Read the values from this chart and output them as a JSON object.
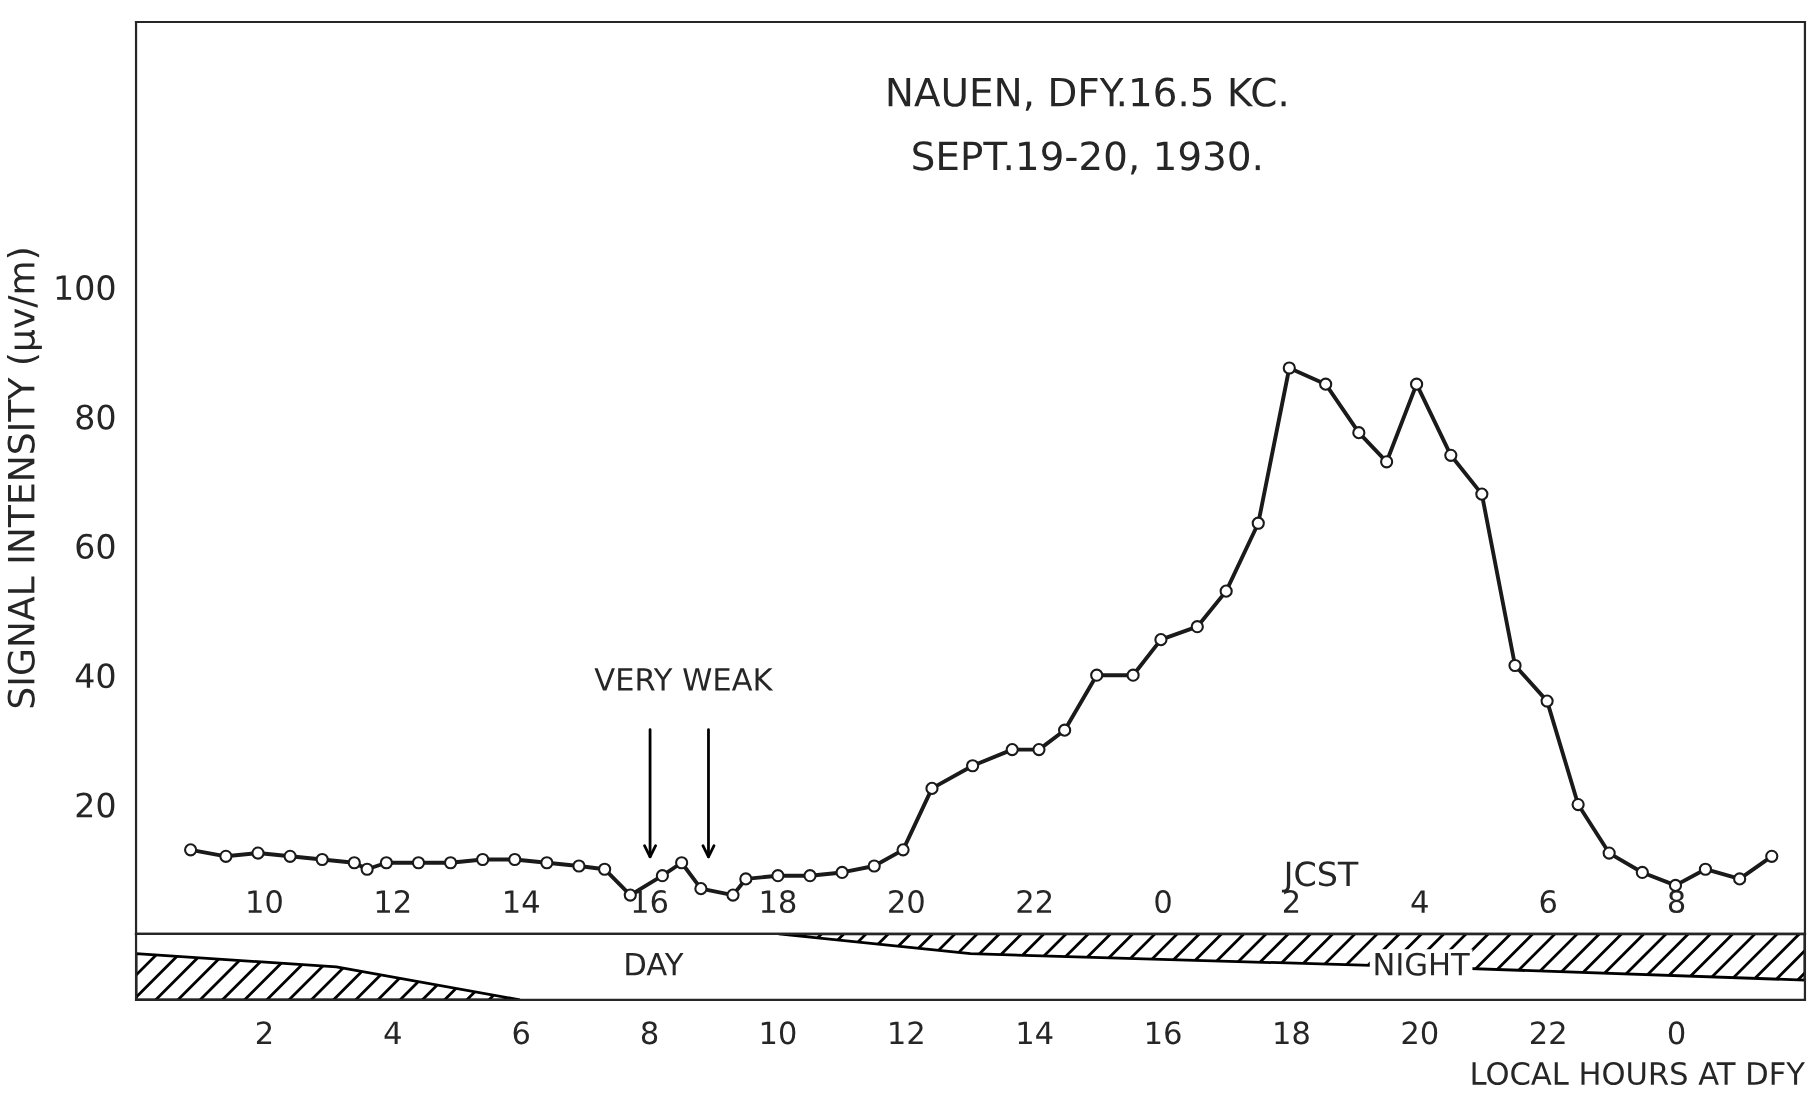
{
  "chart_data": {
    "type": "line",
    "title": "NAUEN, DFY.16.5 KC.",
    "subtitle": "SEPT.19-20, 1930.",
    "ylabel": "SIGNAL INTENSITY (μv/m)",
    "xlabel": "LOCAL HOURS AT DFY",
    "x2label": "JCST",
    "annotations": [
      "VERY WEAK",
      "DAY",
      "NIGHT"
    ],
    "series": [
      {
        "color": "#1a1a1a",
        "x": [
          "1930-09-19T00:51",
          "1930-09-19T01:24",
          "1930-09-19T01:54",
          "1930-09-19T02:24",
          "1930-09-19T02:54",
          "1930-09-19T03:24",
          "1930-09-19T03:36",
          "1930-09-19T03:54",
          "1930-09-19T04:24",
          "1930-09-19T04:54",
          "1930-09-19T05:24",
          "1930-09-19T05:54",
          "1930-09-19T06:24",
          "1930-09-19T06:54",
          "1930-09-19T07:18",
          "1930-09-19T07:42",
          "1930-09-19T08:12",
          "1930-09-19T08:30",
          "1930-09-19T08:48",
          "1930-09-19T09:18",
          "1930-09-19T09:30",
          "1930-09-19T10:00",
          "1930-09-19T10:30",
          "1930-09-19T11:00",
          "1930-09-19T11:30",
          "1930-09-19T11:57",
          "1930-09-19T12:24",
          "1930-09-19T13:02",
          "1930-09-19T13:39",
          "1930-09-19T14:04",
          "1930-09-19T14:28",
          "1930-09-19T14:58",
          "1930-09-19T15:32",
          "1930-09-19T15:58",
          "1930-09-19T16:32",
          "1930-09-19T16:59",
          "1930-09-19T17:29",
          "1930-09-19T17:58",
          "1930-09-19T18:32",
          "1930-09-19T19:03",
          "1930-09-19T19:29",
          "1930-09-19T19:57",
          "1930-09-19T20:29",
          "1930-09-19T20:58",
          "1930-09-19T21:29",
          "1930-09-19T21:59",
          "1930-09-19T22:28",
          "1930-09-19T22:57",
          "1930-09-19T23:28",
          "1930-09-19T23:59",
          "1930-09-20T00:27",
          "1930-09-20T00:59",
          "1930-09-20T01:29"
        ],
        "values": [
          13,
          12,
          12.5,
          12,
          11.5,
          11,
          10,
          11,
          11,
          11,
          11.5,
          11.5,
          11,
          10.5,
          10,
          6,
          9,
          11,
          7,
          6,
          8.5,
          9,
          9,
          9.5,
          10.5,
          13,
          22.5,
          26,
          28.5,
          28.5,
          31.5,
          40,
          40,
          45.5,
          47.5,
          53,
          63.5,
          87.5,
          85,
          77.5,
          73,
          85,
          74,
          68,
          41.5,
          36,
          20,
          12.5,
          9.5,
          7.5,
          10,
          8.5,
          12
        ]
      }
    ],
    "marker": "circle",
    "line_style": "solid",
    "grid": false,
    "legend": false,
    "xlim": [
      "1930-09-19T00:00",
      "1930-09-20T02:00"
    ],
    "xticks": [
      {
        "value": "1930-09-19T02:00",
        "label": "2"
      },
      {
        "value": "1930-09-19T04:00",
        "label": "4"
      },
      {
        "value": "1930-09-19T06:00",
        "label": "6"
      },
      {
        "value": "1930-09-19T08:00",
        "label": "8"
      },
      {
        "value": "1930-09-19T10:00",
        "label": "10"
      },
      {
        "value": "1930-09-19T12:00",
        "label": "12"
      },
      {
        "value": "1930-09-19T14:00",
        "label": "14"
      },
      {
        "value": "1930-09-19T16:00",
        "label": "16"
      },
      {
        "value": "1930-09-19T18:00",
        "label": "18"
      },
      {
        "value": "1930-09-19T20:00",
        "label": "20"
      },
      {
        "value": "1930-09-19T22:00",
        "label": "22"
      },
      {
        "value": "1930-09-20T00:00",
        "label": "0"
      }
    ],
    "x2lim": [
      "1930-09-19T08:00",
      "1930-09-20T10:00"
    ],
    "x2ticks": [
      {
        "value": "1930-09-19T10:00",
        "label": "10"
      },
      {
        "value": "1930-09-19T12:00",
        "label": "12"
      },
      {
        "value": "1930-09-19T14:00",
        "label": "14"
      },
      {
        "value": "1930-09-19T16:00",
        "label": "16"
      },
      {
        "value": "1930-09-19T18:00",
        "label": "18"
      },
      {
        "value": "1930-09-19T20:00",
        "label": "20"
      },
      {
        "value": "1930-09-19T22:00",
        "label": "22"
      },
      {
        "value": "1930-09-20T00:00",
        "label": "0"
      },
      {
        "value": "1930-09-20T02:00",
        "label": "2"
      },
      {
        "value": "1930-09-20T04:00",
        "label": "4"
      },
      {
        "value": "1930-09-20T06:00",
        "label": "6"
      },
      {
        "value": "1930-09-20T08:00",
        "label": "8"
      }
    ],
    "ylim": [
      0,
      141
    ],
    "yticks": [
      20,
      40,
      60,
      80,
      100
    ]
  }
}
